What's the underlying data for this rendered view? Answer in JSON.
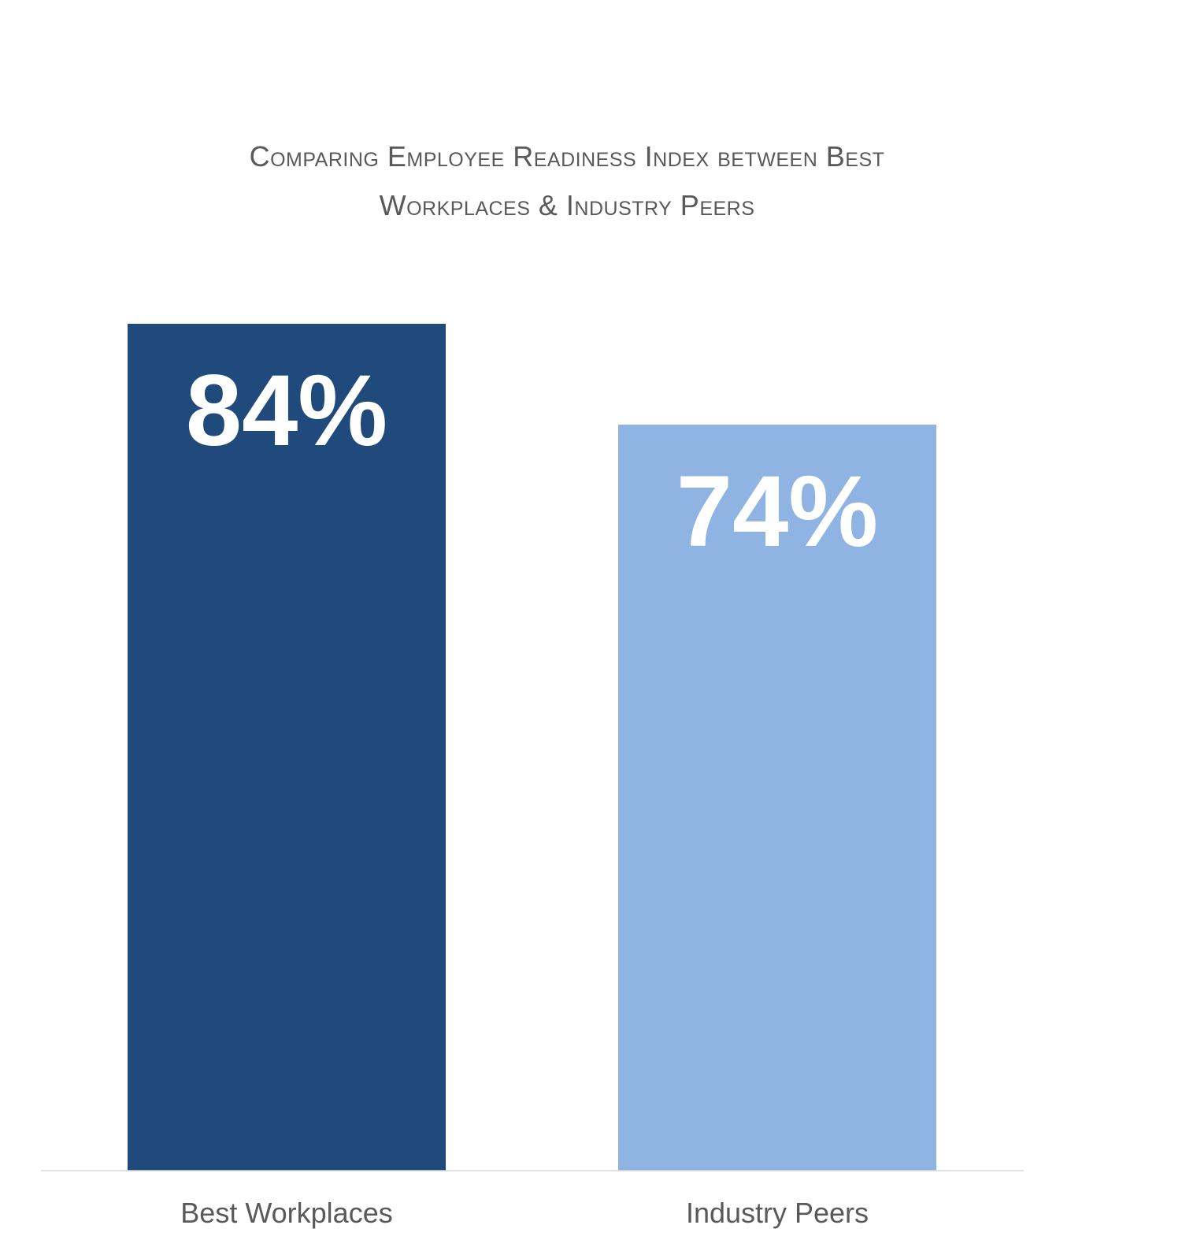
{
  "chart_data": {
    "type": "bar",
    "title_lines": [
      "Comparing Employee Readiness Index between Best",
      "Workplaces & Industry Peers"
    ],
    "categories": [
      "Best Workplaces",
      "Industry Peers"
    ],
    "values": [
      84,
      74
    ],
    "data_labels": [
      "84%",
      "74%"
    ],
    "colors": [
      "#214A7C",
      "#8FB4E3"
    ],
    "label_color": "#FFFFFF",
    "axis_label_color": "#595959",
    "baseline_color": "#D9D9D9",
    "xlabel": "",
    "ylabel": "",
    "grid": false,
    "legend": "none"
  }
}
